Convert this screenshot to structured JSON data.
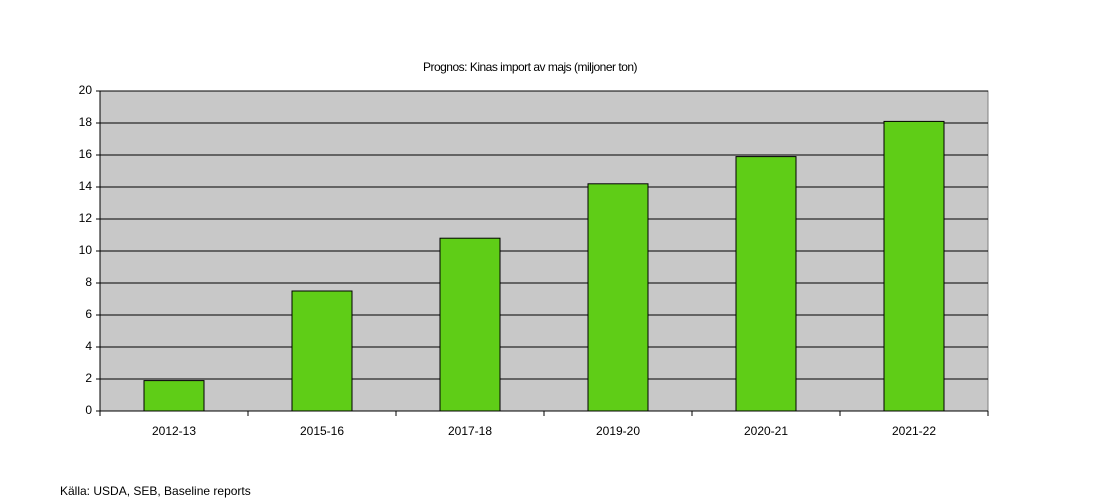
{
  "chart_data": {
    "type": "bar",
    "title": "Prognos: Kinas import av majs (miljoner ton)",
    "categories": [
      "2012-13",
      "2015-16",
      "2017-18",
      "2019-20",
      "2020-21",
      "2021-22"
    ],
    "values": [
      1.9,
      7.5,
      10.8,
      14.2,
      15.9,
      18.1
    ],
    "color": "#5fcd17",
    "ylim": [
      0,
      20
    ],
    "yticks": [
      0,
      2,
      4,
      6,
      8,
      10,
      12,
      14,
      16,
      18,
      20
    ],
    "grid": true,
    "source": "Källa: USDA, SEB, Baseline reports"
  }
}
